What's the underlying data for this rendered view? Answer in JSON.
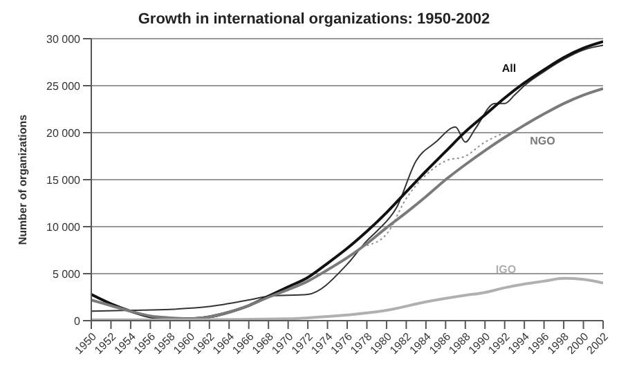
{
  "chart_data": {
    "type": "line",
    "title": "Growth in international organizations: 1950-2002",
    "ylabel": "Number of organizations",
    "xlim": [
      1950,
      2002
    ],
    "xticks": [
      1950,
      1952,
      1954,
      1956,
      1958,
      1960,
      1962,
      1964,
      1966,
      1968,
      1970,
      1972,
      1974,
      1976,
      1978,
      1980,
      1982,
      1984,
      1986,
      1988,
      1990,
      1992,
      1994,
      1996,
      1998,
      2000,
      2002
    ],
    "ylim": [
      0,
      30000
    ],
    "yticks": [
      0,
      {
        "value": 5000,
        "label": "5 000"
      },
      {
        "value": 10000,
        "label": "10 000"
      },
      {
        "value": 15000,
        "label": "15 000"
      },
      {
        "value": 20000,
        "label": "20 000"
      },
      {
        "value": 25000,
        "label": "25 000"
      },
      {
        "value": 30000,
        "label": "30 000"
      }
    ],
    "grid": "y",
    "legend": false,
    "marker": "none",
    "series": [
      {
        "color": "#333333",
        "line_style": "solid",
        "x": [
          1950,
          1954,
          1958,
          1962,
          1966,
          1968,
          1972,
          1976,
          1978,
          1979,
          1981,
          1983,
          1985,
          1987,
          1988,
          1989,
          1991,
          1992,
          1993,
          1994,
          1996,
          1998,
          2000,
          2002
        ],
        "values": [
          1000,
          1100,
          1200,
          1500,
          2200,
          2600,
          2800,
          6000,
          8500,
          9500,
          12000,
          17000,
          19000,
          20600,
          19000,
          20400,
          23100,
          23100,
          24000,
          25000,
          26500,
          27800,
          28800,
          29300
        ]
      },
      {
        "color": "#909090",
        "line_style": "dotted",
        "x": [
          1978,
          1980,
          1982,
          1984,
          1986,
          1988,
          1990,
          1992
        ],
        "values": [
          8000,
          9200,
          13000,
          15500,
          17000,
          17500,
          19000,
          20000
        ]
      },
      {
        "name": "All",
        "color": "#111111",
        "line_style": "solid",
        "x": [
          1950,
          1952,
          1954,
          1956,
          1958,
          1960,
          1962,
          1964,
          1966,
          1968,
          1970,
          1972,
          1974,
          1976,
          1978,
          1980,
          1982,
          1984,
          1986,
          1988,
          1990,
          1992,
          1994,
          1996,
          1998,
          2000,
          2002
        ],
        "values": [
          2800,
          1800,
          1000,
          400,
          200,
          200,
          400,
          900,
          1600,
          2600,
          3600,
          4600,
          6100,
          7700,
          9500,
          11500,
          13700,
          15900,
          18000,
          20100,
          21900,
          23700,
          25300,
          26700,
          28000,
          29000,
          29700
        ]
      },
      {
        "name": "NGO",
        "color": "#7a7a7a",
        "line_style": "solid",
        "x": [
          1950,
          1952,
          1954,
          1956,
          1958,
          1960,
          1962,
          1964,
          1966,
          1968,
          1970,
          1972,
          1974,
          1976,
          1978,
          1980,
          1982,
          1984,
          1986,
          1988,
          1990,
          1992,
          1994,
          1996,
          1998,
          2000,
          2002
        ],
        "values": [
          2200,
          1600,
          1000,
          500,
          300,
          200,
          400,
          900,
          1600,
          2500,
          3300,
          4200,
          5400,
          6700,
          8200,
          9900,
          11500,
          13200,
          15000,
          16600,
          18100,
          19500,
          20800,
          22000,
          23100,
          24000,
          24700
        ]
      },
      {
        "name": "IGO",
        "color": "#b0b0b0",
        "line_style": "solid",
        "x": [
          1950,
          1960,
          1970,
          1972,
          1976,
          1980,
          1984,
          1988,
          1990,
          1992,
          1994,
          1996,
          1998,
          2000,
          2002
        ],
        "values": [
          100,
          100,
          200,
          300,
          600,
          1100,
          2000,
          2700,
          3000,
          3500,
          3900,
          4200,
          4500,
          4400,
          4000
        ]
      }
    ]
  }
}
